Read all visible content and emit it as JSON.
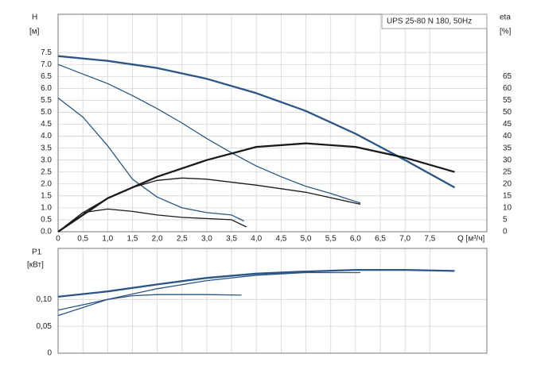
{
  "chart_data": [
    {
      "type": "line",
      "title": "UPS 25-80 N 180, 50Hz",
      "ylabel": "H",
      "yunit": "[м]",
      "y2label": "eta",
      "y2unit": "[%]",
      "xlabel": "Q [м³/ч]",
      "xlim": [
        0,
        8.65
      ],
      "ylim": [
        0,
        9.1
      ],
      "y2lim": [
        0,
        91
      ],
      "grid": true,
      "xticks": [
        0,
        {
          "value": 0.5,
          "label": "0,5"
        },
        {
          "value": 1,
          "label": "1,0"
        },
        {
          "value": 1.5,
          "label": "1,5"
        },
        {
          "value": 2,
          "label": "2,0"
        },
        {
          "value": 2.5,
          "label": "2,5"
        },
        {
          "value": 3,
          "label": "3,0"
        },
        {
          "value": 3.5,
          "label": "3,5"
        },
        {
          "value": 4,
          "label": "4,0"
        },
        {
          "value": 4.5,
          "label": "4,5"
        },
        {
          "value": 5,
          "label": "5,0"
        },
        {
          "value": 5.5,
          "label": "5,5"
        },
        {
          "value": 6,
          "label": "6,0"
        },
        {
          "value": 6.5,
          "label": "6,5"
        },
        {
          "value": 7,
          "label": "7,0"
        },
        {
          "value": 7.5,
          "label": "7,5"
        }
      ],
      "yticks": [
        {
          "value": 0,
          "label": "0.0"
        },
        0.5,
        {
          "value": 1,
          "label": "1.0"
        },
        1.5,
        {
          "value": 2,
          "label": "2.0"
        },
        2.5,
        {
          "value": 3,
          "label": "3.0"
        },
        3.5,
        {
          "value": 4,
          "label": "4.0"
        },
        4.5,
        {
          "value": 5,
          "label": "5.0"
        },
        5.5,
        {
          "value": 6,
          "label": "6.0"
        },
        6.5,
        {
          "value": 7,
          "label": "7.0"
        },
        7.5
      ],
      "y2ticks": [
        0,
        5,
        10,
        15,
        20,
        25,
        30,
        35,
        40,
        45,
        50,
        55,
        60,
        65
      ],
      "series": [
        {
          "color": "#2a5585",
          "x": [
            0,
            1,
            2,
            3,
            4,
            5,
            6,
            7,
            8
          ],
          "values": [
            7.35,
            7.15,
            6.85,
            6.4,
            5.8,
            5.05,
            4.1,
            3.0,
            1.85
          ]
        },
        {
          "color": "#2a5585",
          "x": [
            0,
            0.5,
            1,
            1.5,
            2,
            2.5,
            3,
            3.5,
            4,
            4.5,
            5,
            5.5,
            6.1
          ],
          "values": [
            7.0,
            6.6,
            6.2,
            5.7,
            5.15,
            4.55,
            3.9,
            3.3,
            2.75,
            2.3,
            1.9,
            1.6,
            1.2
          ]
        },
        {
          "color": "#2a5585",
          "x": [
            0,
            0.5,
            1,
            1.5,
            2,
            2.5,
            3,
            3.5,
            3.75
          ],
          "values": [
            5.6,
            4.8,
            3.6,
            2.2,
            1.45,
            1.0,
            0.8,
            0.7,
            0.45
          ]
        },
        {
          "color": "#1a1a1a",
          "axis": "y2",
          "x": [
            0,
            1,
            2,
            3,
            4,
            5,
            6,
            7,
            8
          ],
          "values": [
            0,
            14,
            23,
            30,
            35.5,
            37,
            35.5,
            31,
            25
          ]
        },
        {
          "color": "#1a1a1a",
          "axis": "y2",
          "x": [
            0,
            0.5,
            1,
            1.5,
            2,
            2.5,
            3,
            4,
            5,
            6.1
          ],
          "values": [
            0,
            8,
            14,
            18.5,
            21.5,
            22.5,
            22,
            19.5,
            16.5,
            11.5
          ]
        },
        {
          "color": "#1a1a1a",
          "axis": "y2",
          "x": [
            0,
            0.5,
            1,
            1.5,
            2,
            2.5,
            3,
            3.5,
            3.8
          ],
          "values": [
            0,
            8,
            9.5,
            8.5,
            7,
            6,
            5.5,
            5,
            2
          ]
        }
      ]
    },
    {
      "type": "line",
      "ylabel": "P1",
      "yunit": "[кВт]",
      "xlim": [
        0,
        8.65
      ],
      "ylim": [
        0,
        0.195
      ],
      "grid": true,
      "yticks": [
        0,
        {
          "value": 0.05,
          "label": "0,05"
        },
        {
          "value": 0.1,
          "label": "0,10"
        }
      ],
      "series": [
        {
          "color": "#2a5585",
          "x": [
            0,
            1,
            2,
            3,
            4,
            5,
            6,
            7,
            8
          ],
          "values": [
            0.105,
            0.115,
            0.128,
            0.14,
            0.148,
            0.152,
            0.155,
            0.155,
            0.153
          ]
        },
        {
          "color": "#2a5585",
          "x": [
            0,
            1,
            2,
            3,
            4,
            5,
            6.1
          ],
          "values": [
            0.08,
            0.1,
            0.12,
            0.135,
            0.145,
            0.15,
            0.15
          ]
        },
        {
          "color": "#2a5585",
          "x": [
            0,
            0.5,
            1,
            1.5,
            2,
            3,
            3.7
          ],
          "values": [
            0.07,
            0.085,
            0.1,
            0.107,
            0.109,
            0.109,
            0.108
          ]
        }
      ]
    }
  ]
}
